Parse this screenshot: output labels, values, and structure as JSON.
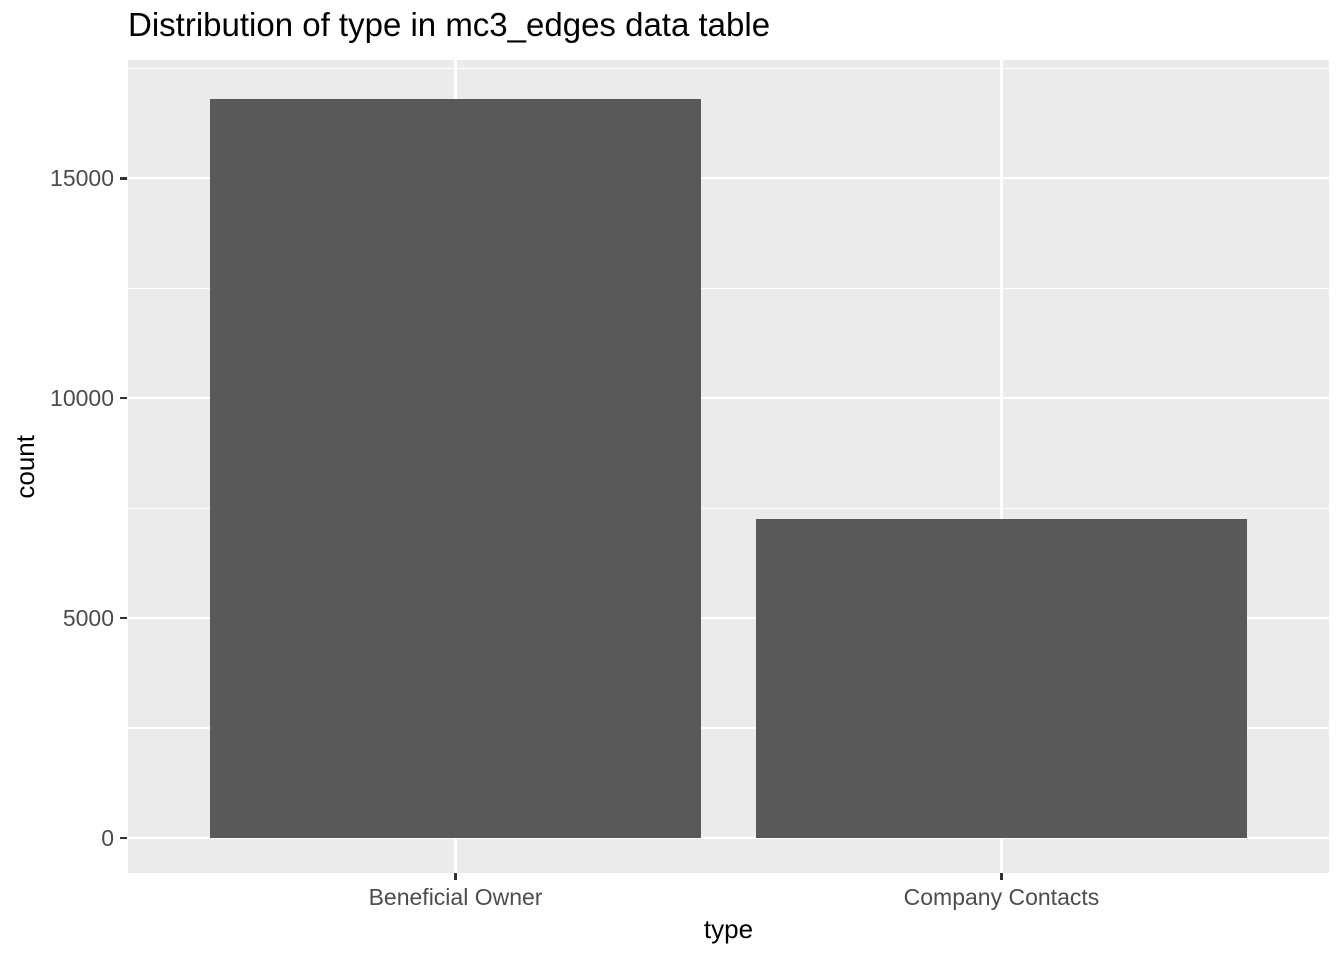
{
  "chart_data": {
    "type": "bar",
    "title": "Distribution of type in mc3_edges data table",
    "xlabel": "type",
    "ylabel": "count",
    "categories": [
      "Beneficial Owner",
      "Company Contacts"
    ],
    "values": [
      16792,
      7244
    ],
    "y_major_ticks": [
      0,
      5000,
      10000,
      15000
    ],
    "y_tick_labels": [
      "0",
      "5000",
      "10000",
      "15000"
    ],
    "y_minor_gridlines": [
      2500,
      7500,
      12500,
      17500
    ],
    "ylim": [
      -795,
      17690
    ],
    "x_domain": [
      0.4,
      2.6
    ],
    "x_positions": [
      1,
      2
    ],
    "bar_rel_width": 0.9,
    "grid": true,
    "legend": false,
    "colors": {
      "bar_fill": "#595959",
      "panel_bg": "#EBEBEB",
      "gridline_major": "#FFFFFF",
      "gridline_minor": "#FFFFFF",
      "tick_label": "#4D4D4D",
      "tick_mark": "#333333",
      "title_text": "#000000",
      "background": "#FFFFFF"
    }
  }
}
